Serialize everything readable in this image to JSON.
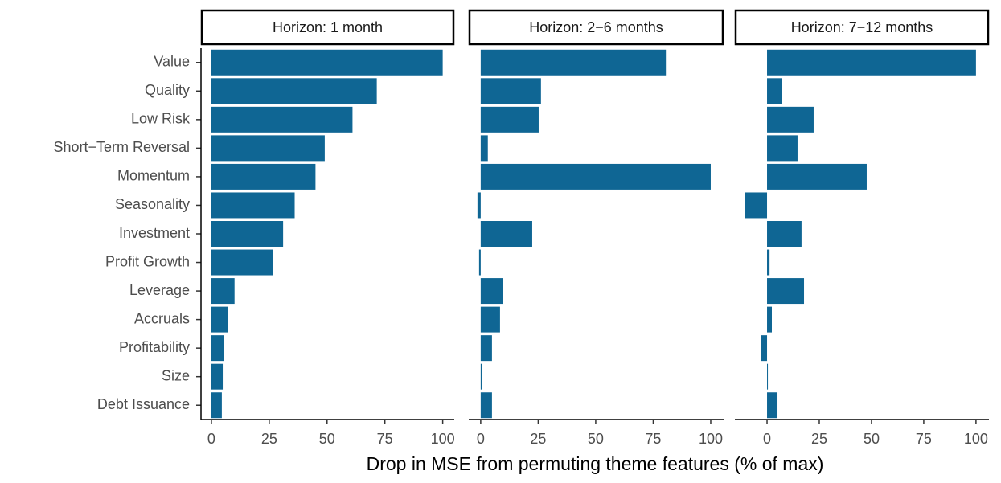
{
  "chart_data": {
    "type": "bar",
    "orientation": "horizontal",
    "color": "#0f6694",
    "xlabel": "Drop in MSE from permuting theme features (% of max)",
    "categories": [
      "Value",
      "Quality",
      "Low Risk",
      "Short−Term Reversal",
      "Momentum",
      "Seasonality",
      "Investment",
      "Profit Growth",
      "Leverage",
      "Accruals",
      "Profitability",
      "Size",
      "Debt Issuance"
    ],
    "facets": [
      {
        "title": "Horizon: 1 month",
        "values": [
          100,
          71.5,
          61,
          49,
          45,
          36,
          31,
          26.7,
          10,
          7.3,
          5.5,
          4.9,
          4.5
        ],
        "xlim": [
          -4.5,
          105
        ],
        "xticks": [
          0,
          25,
          50,
          75,
          100
        ]
      },
      {
        "title": "Horizon: 2−6 months",
        "values": [
          80.5,
          26.2,
          25.2,
          3.1,
          100,
          -1.4,
          22.4,
          -0.7,
          9.8,
          8.4,
          4.9,
          0.7,
          4.9
        ],
        "xlim": [
          -5.2,
          105.6
        ],
        "xticks": [
          0,
          25,
          50,
          75,
          100
        ]
      },
      {
        "title": "Horizon: 7−12 months",
        "values": [
          100,
          7.3,
          22.3,
          14.6,
          47.7,
          -10.4,
          16.5,
          1.2,
          17.7,
          2.3,
          -2.7,
          0.4,
          5
        ],
        "xlim": [
          -15.4,
          106.2
        ],
        "xticks": [
          0,
          25,
          50,
          75,
          100
        ]
      }
    ]
  }
}
